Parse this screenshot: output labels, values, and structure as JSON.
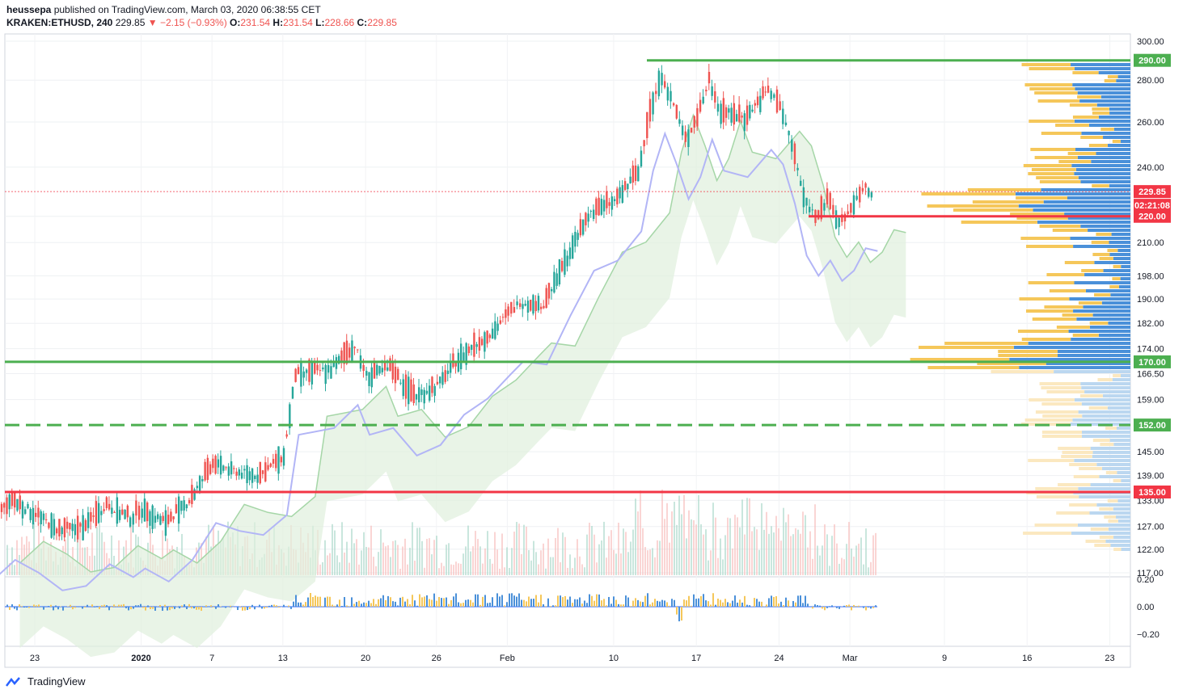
{
  "header": {
    "author": "heussepa",
    "published_text": "published on TradingView.com, March 03, 2020 06:38:55 CET",
    "symbol": "KRAKEN:ETHUSD, 240",
    "last": "229.85",
    "change": "▼ −2.15 (−0.93%)",
    "o_label": "O:",
    "o_value": "231.54",
    "h_label": "H:",
    "h_value": "231.54",
    "l_label": "L:",
    "l_value": "228.66",
    "c_label": "C:",
    "c_value": "229.85"
  },
  "footer": {
    "brand": "TradingView"
  },
  "colors": {
    "up": "#26a69a",
    "down": "#ef5350",
    "green_line": "#4caf50",
    "red_line": "#f23645",
    "base_line": "#b2b5f6",
    "vp_blue": "#4a90d9",
    "vp_yellow": "#f5c75a"
  },
  "chart_data": {
    "type": "candlestick",
    "price_axis": {
      "ticks": [
        "300.00",
        "280.00",
        "260.00",
        "240.00",
        "220.00",
        "210.00",
        "198.00",
        "190.00",
        "182.00",
        "174.00",
        "166.50",
        "159.00",
        "145.00",
        "139.00",
        "133.00",
        "127.00",
        "122.00",
        "117.00"
      ],
      "scale": "log"
    },
    "time_axis": {
      "ticks": [
        "23",
        "2020",
        "7",
        "13",
        "20",
        "26",
        "Feb",
        "10",
        "17",
        "24",
        "Mar",
        "9",
        "16",
        "23"
      ]
    },
    "levels": [
      {
        "price": 290.0,
        "label": "290.00",
        "style": "solid",
        "color": "#4caf50"
      },
      {
        "price": 229.85,
        "label": "229.85",
        "style": "dotted",
        "color": "#f23645"
      },
      {
        "price": 220.0,
        "label": "220.00",
        "style": "solid",
        "color": "#f23645"
      },
      {
        "price": 170.0,
        "label": "170.00",
        "style": "solid",
        "color": "#4caf50"
      },
      {
        "price": 152.0,
        "label": "152.00",
        "style": "dashed",
        "color": "#4caf50"
      },
      {
        "price": 135.0,
        "label": "135.00",
        "style": "solid",
        "color": "#f23645"
      }
    ],
    "countdown": "02:21:08",
    "price_path": [
      [
        "2019-12-19",
        128
      ],
      [
        "2019-12-21",
        133
      ],
      [
        "2019-12-23",
        130
      ],
      [
        "2019-12-25",
        126
      ],
      [
        "2019-12-27",
        127
      ],
      [
        "2019-12-29",
        132
      ],
      [
        "2019-12-31",
        129
      ],
      [
        "2020-01-01",
        131
      ],
      [
        "2020-01-03",
        128
      ],
      [
        "2020-01-05",
        133
      ],
      [
        "2020-01-07",
        142
      ],
      [
        "2020-01-09",
        140
      ],
      [
        "2020-01-11",
        139
      ],
      [
        "2020-01-13",
        144
      ],
      [
        "2020-01-14",
        166
      ],
      [
        "2020-01-17",
        168
      ],
      [
        "2020-01-19",
        175
      ],
      [
        "2020-01-20",
        166
      ],
      [
        "2020-01-22",
        168
      ],
      [
        "2020-01-24",
        160
      ],
      [
        "2020-01-26",
        163
      ],
      [
        "2020-01-28",
        172
      ],
      [
        "2020-01-30",
        177
      ],
      [
        "2020-02-01",
        185
      ],
      [
        "2020-02-02",
        189
      ],
      [
        "2020-02-04",
        188
      ],
      [
        "2020-02-06",
        205
      ],
      [
        "2020-02-08",
        222
      ],
      [
        "2020-02-10",
        226
      ],
      [
        "2020-02-12",
        238
      ],
      [
        "2020-02-13",
        265
      ],
      [
        "2020-02-14",
        283
      ],
      [
        "2020-02-15",
        268
      ],
      [
        "2020-02-16",
        252
      ],
      [
        "2020-02-17",
        262
      ],
      [
        "2020-02-18",
        280
      ],
      [
        "2020-02-19",
        265
      ],
      [
        "2020-02-21",
        262
      ],
      [
        "2020-02-23",
        275
      ],
      [
        "2020-02-24",
        268
      ],
      [
        "2020-02-25",
        250
      ],
      [
        "2020-02-26",
        228
      ],
      [
        "2020-02-27",
        220
      ],
      [
        "2020-02-28",
        226
      ],
      [
        "2020-02-29",
        218
      ],
      [
        "2020-03-01",
        222
      ],
      [
        "2020-03-02",
        231
      ],
      [
        "2020-03-03",
        229.85
      ]
    ],
    "oscillator": {
      "ticks": [
        "0.20",
        "0.00",
        "−0.20"
      ]
    }
  }
}
